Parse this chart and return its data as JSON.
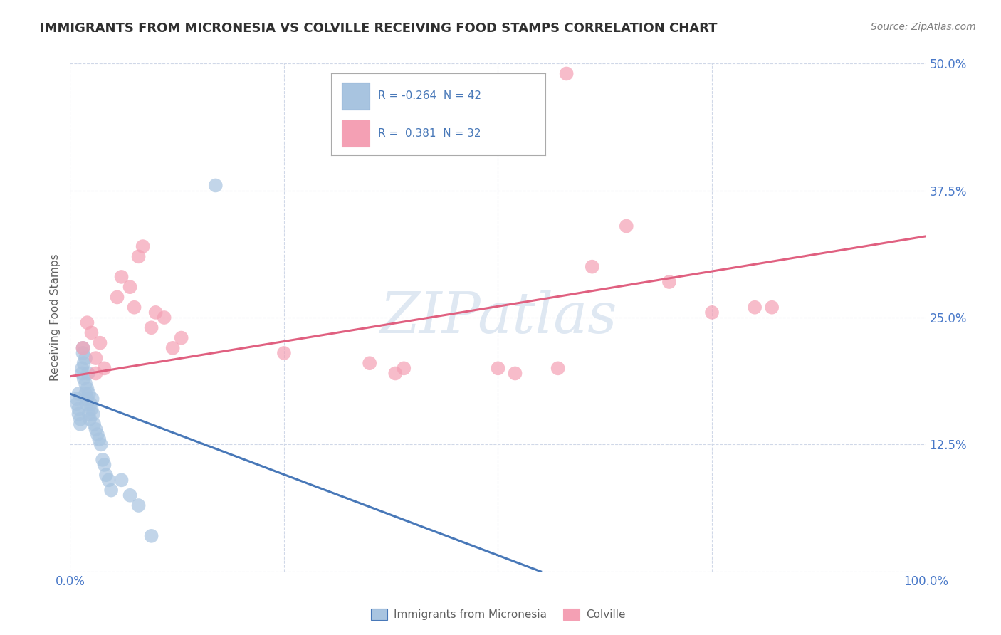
{
  "title": "IMMIGRANTS FROM MICRONESIA VS COLVILLE RECEIVING FOOD STAMPS CORRELATION CHART",
  "source": "Source: ZipAtlas.com",
  "ylabel": "Receiving Food Stamps",
  "r_micronesia": -0.264,
  "n_micronesia": 42,
  "r_colville": 0.381,
  "n_colville": 32,
  "watermark": "ZIPatlas",
  "xmin": 0.0,
  "xmax": 1.0,
  "ymin": 0.0,
  "ymax": 0.5,
  "color_micronesia": "#a8c4e0",
  "color_colville": "#f4a0b4",
  "line_color_micronesia": "#4878b8",
  "line_color_colville": "#e06080",
  "background_color": "#ffffff",
  "grid_color": "#d0d8e8",
  "axis_label_color": "#4878c8",
  "micronesia_x": [
    0.008,
    0.008,
    0.01,
    0.01,
    0.01,
    0.012,
    0.012,
    0.014,
    0.014,
    0.015,
    0.015,
    0.016,
    0.016,
    0.018,
    0.018,
    0.018,
    0.019,
    0.02,
    0.02,
    0.021,
    0.022,
    0.022,
    0.023,
    0.024,
    0.025,
    0.026,
    0.027,
    0.028,
    0.03,
    0.032,
    0.034,
    0.036,
    0.038,
    0.04,
    0.042,
    0.045,
    0.048,
    0.06,
    0.07,
    0.08,
    0.095,
    0.17
  ],
  "micronesia_y": [
    0.165,
    0.17,
    0.16,
    0.175,
    0.155,
    0.15,
    0.145,
    0.2,
    0.195,
    0.22,
    0.215,
    0.205,
    0.19,
    0.21,
    0.185,
    0.175,
    0.165,
    0.18,
    0.17,
    0.195,
    0.175,
    0.155,
    0.15,
    0.165,
    0.16,
    0.17,
    0.155,
    0.145,
    0.14,
    0.135,
    0.13,
    0.125,
    0.11,
    0.105,
    0.095,
    0.09,
    0.08,
    0.09,
    0.075,
    0.065,
    0.035,
    0.38
  ],
  "colville_x": [
    0.015,
    0.02,
    0.025,
    0.03,
    0.03,
    0.035,
    0.04,
    0.055,
    0.06,
    0.07,
    0.075,
    0.08,
    0.085,
    0.095,
    0.1,
    0.11,
    0.12,
    0.13,
    0.25,
    0.35,
    0.38,
    0.39,
    0.5,
    0.52,
    0.57,
    0.61,
    0.65,
    0.7,
    0.75,
    0.8,
    0.82,
    0.58
  ],
  "colville_y": [
    0.22,
    0.245,
    0.235,
    0.195,
    0.21,
    0.225,
    0.2,
    0.27,
    0.29,
    0.28,
    0.26,
    0.31,
    0.32,
    0.24,
    0.255,
    0.25,
    0.22,
    0.23,
    0.215,
    0.205,
    0.195,
    0.2,
    0.2,
    0.195,
    0.2,
    0.3,
    0.34,
    0.285,
    0.255,
    0.26,
    0.26,
    0.49
  ],
  "blue_line_x0": 0.0,
  "blue_line_y0": 0.175,
  "blue_line_x1": 0.55,
  "blue_line_y1": 0.0,
  "pink_line_x0": 0.0,
  "pink_line_y0": 0.192,
  "pink_line_x1": 1.0,
  "pink_line_y1": 0.33,
  "legend_r_mic": "R = -0.264",
  "legend_n_mic": "N = 42",
  "legend_r_col": "R =  0.381",
  "legend_n_col": "N = 32"
}
